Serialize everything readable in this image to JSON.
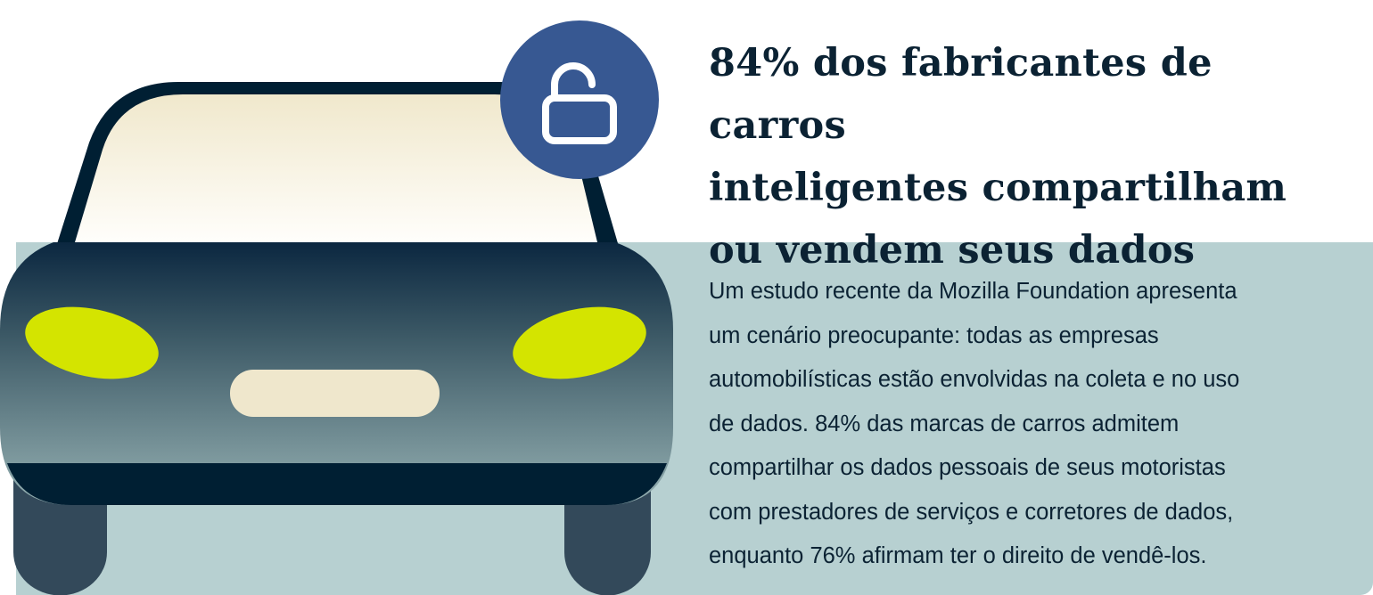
{
  "headline": {
    "lines": [
      "84% dos fabricantes de carros",
      "inteligentes compartilham",
      "ou vendem seus dados"
    ]
  },
  "body": {
    "lines": [
      "Um estudo recente da Mozilla Foundation apresenta",
      "um cenário preocupante: todas as empresas",
      "automobilísticas estão envolvidas na coleta e no uso",
      "de dados. 84% das marcas de carros admitem",
      "compartilhar os dados pessoais de seus motoristas",
      "com prestadores de serviços e corretores de dados,",
      "enquanto 76% afirmam ter o direito de vendê-los."
    ]
  },
  "illustration": {
    "subject": "car-front",
    "badge_icon": "unlocked-padlock-icon"
  },
  "colors": {
    "navy": "#001f33",
    "teal_panel": "#b7d0d1",
    "lock_badge": "#375892",
    "headlight": "#d4e400",
    "cream": "#efe7cc"
  }
}
